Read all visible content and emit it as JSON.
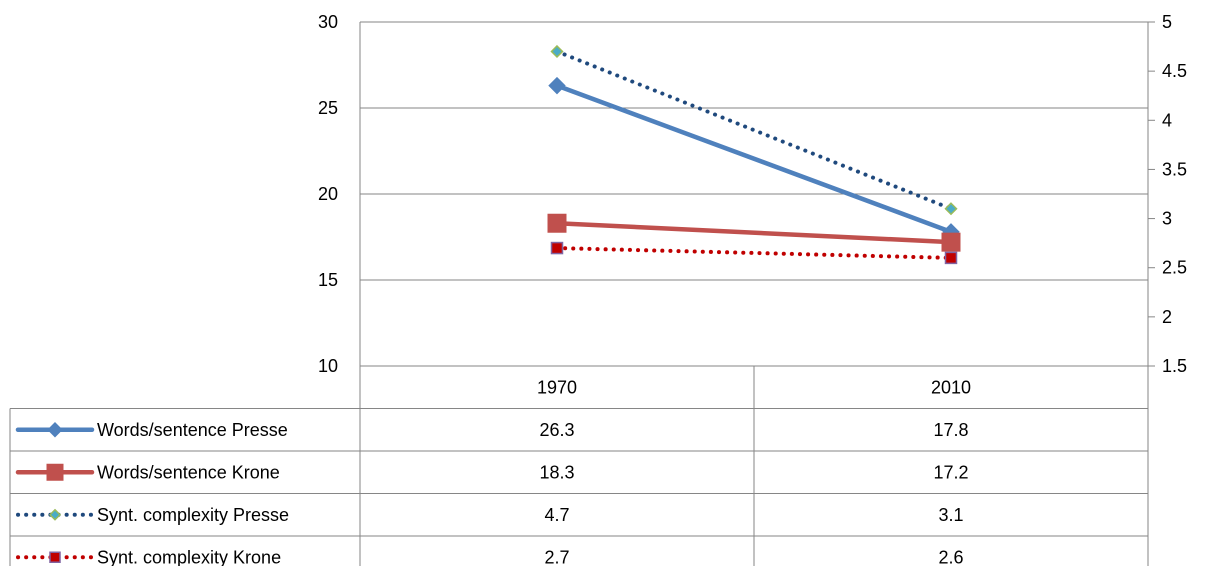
{
  "chart_data": {
    "type": "line",
    "title": "",
    "xlabel": "",
    "ylabel": "",
    "categories": [
      "1970",
      "2010"
    ],
    "y_left": {
      "min": 10,
      "max": 30,
      "step": 5,
      "ticks": [
        "30",
        "25",
        "20",
        "15",
        "10"
      ]
    },
    "y_right": {
      "min": 1.5,
      "max": 5,
      "step": 0.5,
      "ticks": [
        "5",
        "4.5",
        "4",
        "3.5",
        "3",
        "2.5",
        "2",
        "1.5"
      ]
    },
    "grid": true,
    "legend": "data-table-below",
    "series": [
      {
        "name": "Words/sentence Presse",
        "axis": "left",
        "values": [
          26.3,
          17.8
        ],
        "labels": [
          "26.3",
          "17.8"
        ],
        "color": "#4F81BD",
        "line": "solid",
        "marker": "diamond",
        "marker_fill": "#4F81BD"
      },
      {
        "name": "Words/sentence Krone",
        "axis": "left",
        "values": [
          18.3,
          17.2
        ],
        "labels": [
          "18.3",
          "17.2"
        ],
        "color": "#C0504D",
        "line": "solid",
        "marker": "square",
        "marker_fill": "#C0504D"
      },
      {
        "name": "Synt. complexity Presse",
        "axis": "right",
        "values": [
          4.7,
          3.1
        ],
        "labels": [
          "4.7",
          "3.1"
        ],
        "color": "#1F497D",
        "line": "dotted",
        "marker": "diamond",
        "marker_fill": "#4BACC6",
        "marker_stroke": "#9BBB59"
      },
      {
        "name": "Synt. complexity Krone",
        "axis": "right",
        "values": [
          2.7,
          2.6
        ],
        "labels": [
          "2.7",
          "2.6"
        ],
        "color": "#C00000",
        "line": "dotted",
        "marker": "square",
        "marker_fill": "#C00000",
        "marker_stroke": "#8064A2"
      }
    ]
  }
}
